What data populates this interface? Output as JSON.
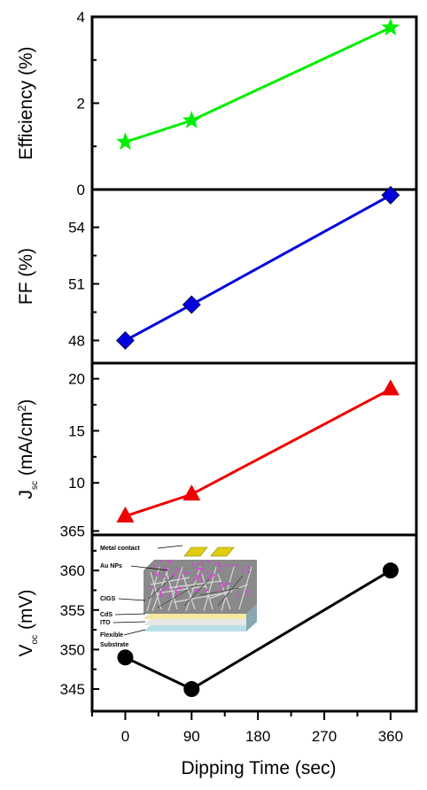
{
  "chart_data": [
    {
      "type": "line",
      "ylabel": "Efficiency (%)",
      "x": [
        0,
        90,
        360
      ],
      "series": [
        {
          "values": [
            1.1,
            1.6,
            3.75
          ],
          "color": "#00ee00",
          "marker": "star"
        }
      ],
      "ylim": [
        0,
        4
      ],
      "yticks": [
        "0",
        "2",
        "4"
      ]
    },
    {
      "type": "line",
      "ylabel": "FF (%)",
      "x": [
        0,
        90,
        360
      ],
      "series": [
        {
          "values": [
            48.0,
            49.9,
            55.7
          ],
          "color": "#0000dd",
          "marker": "diamond"
        }
      ],
      "ylim": [
        46.8,
        56
      ],
      "yticks": [
        "48",
        "51",
        "54"
      ]
    },
    {
      "type": "line",
      "ylabel": {
        "main": "J",
        "sub": "sc",
        "unit": " (mA/cm",
        "sup": "2",
        "close": ")"
      },
      "x": [
        0,
        90,
        360
      ],
      "series": [
        {
          "values": [
            6.8,
            8.9,
            19.0
          ],
          "color": "#ee0000",
          "marker": "triangle"
        }
      ],
      "ylim": [
        5,
        21.5
      ],
      "yticks": [
        "10",
        "15",
        "20"
      ]
    },
    {
      "type": "line",
      "ylabel": {
        "main": "V",
        "sub": "oc",
        "unit": " (mV)"
      },
      "x": [
        0,
        90,
        360
      ],
      "series": [
        {
          "values": [
            349,
            345,
            360
          ],
          "color": "#000000",
          "marker": "circle"
        }
      ],
      "ylim": [
        342.2,
        364.5
      ],
      "yticks": [
        "345",
        "350",
        "355",
        "360",
        "365"
      ]
    }
  ],
  "x_axis": {
    "xlabel": "Dipping Time (sec)",
    "xlim": [
      -45,
      395
    ],
    "xticks": [
      "0",
      "90",
      "180",
      "270",
      "360"
    ]
  },
  "inset": {
    "labels": [
      "Metal contact",
      "Au NPs",
      "CIGS",
      "CdS",
      "ITO",
      "Flexible",
      "Substrate"
    ]
  }
}
